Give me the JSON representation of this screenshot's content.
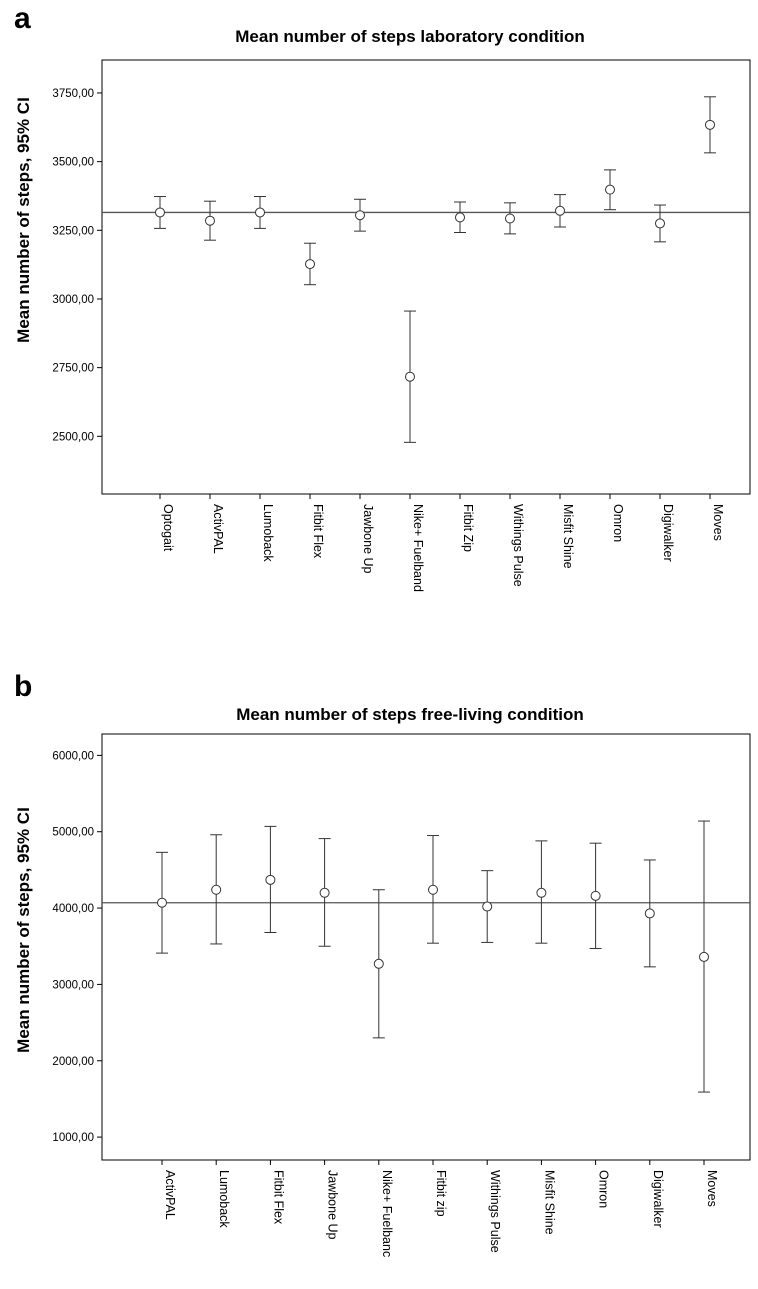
{
  "figure": {
    "panels": [
      {
        "letter": "a"
      },
      {
        "letter": "b"
      }
    ]
  },
  "chart_data": [
    {
      "type": "scatter",
      "title": "Mean number of steps laboratory condition",
      "xlabel": "",
      "ylabel": "Mean number of steps, 95% CI",
      "categories": [
        "Optogait",
        "ActivPAL",
        "Lumoback",
        "Fitbit Flex",
        "Jawbone Up",
        "Nike+ Fuelband",
        "Fitbit Zip",
        "Withings Pulse",
        "Misfit Shine",
        "Omron",
        "Digiwalker",
        "Moves"
      ],
      "series": [
        {
          "mean": [
            3315,
            3285,
            3315,
            3127,
            3305,
            2717,
            3297,
            3293,
            3321,
            3398,
            3275,
            3634
          ],
          "lower": [
            3257,
            3214,
            3257,
            3052,
            3247,
            2478,
            3242,
            3237,
            3262,
            3325,
            3208,
            3532
          ],
          "upper": [
            3373,
            3356,
            3373,
            3203,
            3363,
            2956,
            3353,
            3350,
            3380,
            3470,
            3342,
            3736
          ]
        }
      ],
      "reference_line": 3315,
      "yticks": [
        "2500,00",
        "2750,00",
        "3000,00",
        "3250,00",
        "3500,00",
        "3750,00"
      ],
      "ytick_values": [
        2500,
        2750,
        3000,
        3250,
        3500,
        3750
      ],
      "ylim": [
        2290,
        3870
      ],
      "grid": false,
      "legend": "none"
    },
    {
      "type": "scatter",
      "title": "Mean number of steps free-living condition",
      "xlabel": "",
      "ylabel": "Mean number of steps, 95% CI",
      "categories": [
        "ActivPAL",
        "Lumoback",
        "Fitbit Flex",
        "Jawbone Up",
        "Nike+ Fuelbanc",
        "Fitbit zip",
        "Withings Pulse",
        "Misfit Shine",
        "Omron",
        "Digiwalker",
        "Moves"
      ],
      "series": [
        {
          "mean": [
            4070,
            4240,
            4370,
            4200,
            3270,
            4240,
            4020,
            4200,
            4160,
            3930,
            3360
          ],
          "lower": [
            3410,
            3530,
            3680,
            3500,
            2300,
            3540,
            3550,
            3540,
            3470,
            3230,
            1590
          ],
          "upper": [
            4730,
            4960,
            5070,
            4910,
            4240,
            4950,
            4490,
            4880,
            4850,
            4630,
            5140
          ]
        }
      ],
      "reference_line": 4070,
      "yticks": [
        "1000,00",
        "2000,00",
        "3000,00",
        "4000,00",
        "5000,00",
        "6000,00"
      ],
      "ytick_values": [
        1000,
        2000,
        3000,
        4000,
        5000,
        6000
      ],
      "ylim": [
        700,
        6280
      ],
      "grid": false,
      "legend": "none"
    }
  ]
}
